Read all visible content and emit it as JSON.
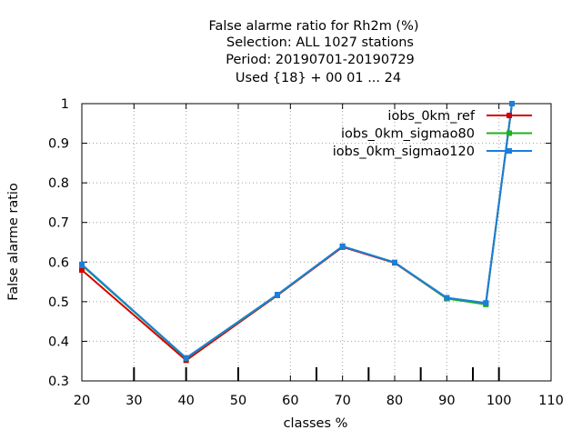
{
  "chart_data": {
    "type": "line",
    "title_lines": [
      "False alarme ratio  for Rh2m (%)",
      "Selection: ALL   1027 stations",
      "Period: 20190701-20190729",
      "Used {18} + 00 01 ... 24"
    ],
    "xlabel": "classes %",
    "ylabel": "False alarme ratio",
    "xlim": [
      20,
      110
    ],
    "ylim": [
      0.3,
      1.0
    ],
    "xticks": [
      20,
      30,
      40,
      50,
      60,
      70,
      80,
      90,
      100,
      110
    ],
    "yticks": [
      0.3,
      0.4,
      0.5,
      0.6,
      0.7,
      0.8,
      0.9,
      1.0
    ],
    "ytick_labels": [
      "0.3",
      "0.4",
      "0.5",
      "0.6",
      "0.7",
      "0.8",
      "0.9",
      "1"
    ],
    "grid": true,
    "legend_position": "top-right",
    "class_markers": [
      30,
      40,
      50,
      65,
      75,
      85,
      95,
      100
    ],
    "series": [
      {
        "name": "iobs_0km_ref",
        "color": "#d40000",
        "x": [
          20,
          40,
          57.5,
          70,
          80,
          90,
          97.5,
          102.5
        ],
        "y": [
          0.58,
          0.352,
          0.516,
          0.638,
          0.598,
          0.508,
          0.496,
          1.0
        ]
      },
      {
        "name": "iobs_0km_sigmao80",
        "color": "#20b020",
        "x": [
          20,
          40,
          57.5,
          70,
          80,
          90,
          97.5,
          102.5
        ],
        "y": [
          0.592,
          0.357,
          0.517,
          0.64,
          0.599,
          0.508,
          0.493,
          1.0
        ]
      },
      {
        "name": "iobs_0km_sigmao120",
        "color": "#1a7fdc",
        "x": [
          20,
          40,
          57.5,
          70,
          80,
          90,
          97.5,
          102.5
        ],
        "y": [
          0.594,
          0.358,
          0.518,
          0.64,
          0.599,
          0.51,
          0.497,
          1.0
        ]
      }
    ]
  }
}
